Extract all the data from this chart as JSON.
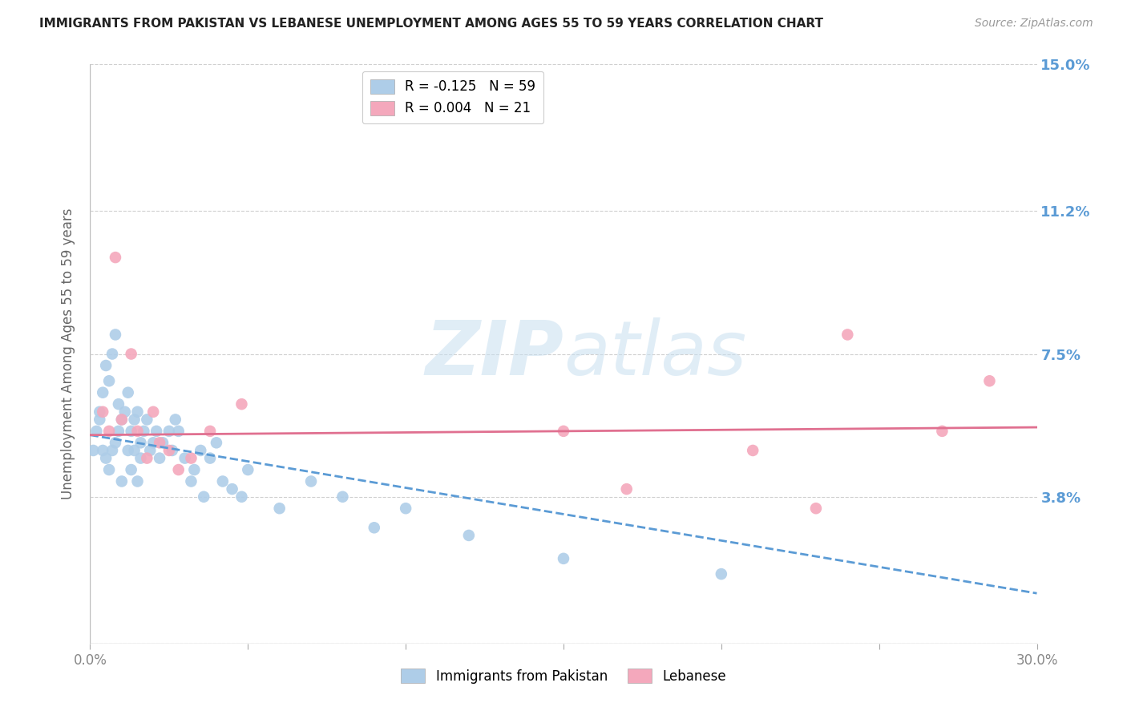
{
  "title": "IMMIGRANTS FROM PAKISTAN VS LEBANESE UNEMPLOYMENT AMONG AGES 55 TO 59 YEARS CORRELATION CHART",
  "source": "Source: ZipAtlas.com",
  "ylabel": "Unemployment Among Ages 55 to 59 years",
  "xlim": [
    0.0,
    0.3
  ],
  "ylim": [
    0.0,
    0.15
  ],
  "yticks": [
    0.0,
    0.038,
    0.075,
    0.112,
    0.15
  ],
  "ytick_labels": [
    "",
    "3.8%",
    "7.5%",
    "11.2%",
    "15.0%"
  ],
  "xticks": [
    0.0,
    0.05,
    0.1,
    0.15,
    0.2,
    0.25,
    0.3
  ],
  "xtick_labels": [
    "0.0%",
    "",
    "",
    "",
    "",
    "",
    "30.0%"
  ],
  "pakistan_R": -0.125,
  "pakistan_N": 59,
  "lebanese_R": 0.004,
  "lebanese_N": 21,
  "pakistan_color": "#aecde8",
  "lebanese_color": "#f4a8bc",
  "pakistan_line_color": "#5b9bd5",
  "lebanese_line_color": "#e07090",
  "watermark_text": "ZIPatlas",
  "pakistan_x": [
    0.001,
    0.002,
    0.003,
    0.003,
    0.004,
    0.004,
    0.005,
    0.005,
    0.006,
    0.006,
    0.007,
    0.007,
    0.008,
    0.008,
    0.009,
    0.009,
    0.01,
    0.01,
    0.011,
    0.012,
    0.012,
    0.013,
    0.013,
    0.014,
    0.014,
    0.015,
    0.015,
    0.016,
    0.016,
    0.017,
    0.018,
    0.019,
    0.02,
    0.021,
    0.022,
    0.023,
    0.025,
    0.026,
    0.027,
    0.028,
    0.03,
    0.032,
    0.033,
    0.035,
    0.036,
    0.038,
    0.04,
    0.042,
    0.045,
    0.048,
    0.05,
    0.06,
    0.07,
    0.08,
    0.09,
    0.1,
    0.12,
    0.15,
    0.2
  ],
  "pakistan_y": [
    0.05,
    0.055,
    0.06,
    0.058,
    0.065,
    0.05,
    0.072,
    0.048,
    0.068,
    0.045,
    0.075,
    0.05,
    0.08,
    0.052,
    0.062,
    0.055,
    0.058,
    0.042,
    0.06,
    0.065,
    0.05,
    0.055,
    0.045,
    0.058,
    0.05,
    0.06,
    0.042,
    0.052,
    0.048,
    0.055,
    0.058,
    0.05,
    0.052,
    0.055,
    0.048,
    0.052,
    0.055,
    0.05,
    0.058,
    0.055,
    0.048,
    0.042,
    0.045,
    0.05,
    0.038,
    0.048,
    0.052,
    0.042,
    0.04,
    0.038,
    0.045,
    0.035,
    0.042,
    0.038,
    0.03,
    0.035,
    0.028,
    0.022,
    0.018
  ],
  "lebanese_x": [
    0.004,
    0.006,
    0.008,
    0.01,
    0.013,
    0.015,
    0.018,
    0.02,
    0.022,
    0.025,
    0.028,
    0.032,
    0.038,
    0.048,
    0.15,
    0.17,
    0.21,
    0.23,
    0.24,
    0.27,
    0.285
  ],
  "lebanese_y": [
    0.06,
    0.055,
    0.1,
    0.058,
    0.075,
    0.055,
    0.048,
    0.06,
    0.052,
    0.05,
    0.045,
    0.048,
    0.055,
    0.062,
    0.055,
    0.04,
    0.05,
    0.035,
    0.08,
    0.055,
    0.068
  ],
  "background_color": "#ffffff",
  "grid_color": "#d0d0d0",
  "pakistan_trend_start_y": 0.054,
  "pakistan_trend_end_y": 0.013,
  "lebanese_trend_start_y": 0.054,
  "lebanese_trend_end_y": 0.056
}
